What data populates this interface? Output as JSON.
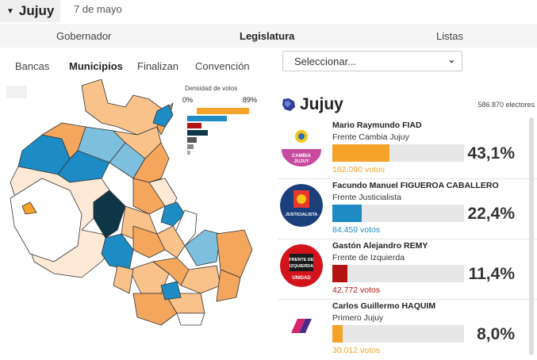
{
  "header": {
    "province": "Jujuy",
    "date": "7 de mayo"
  },
  "levels": [
    "Gobernador",
    "Legislatura",
    "Listas"
  ],
  "active_level": "Legislatura",
  "subtabs": [
    "Bancas",
    "Municipios",
    "Finalizan",
    "Convención"
  ],
  "active_subtab": "Municipios",
  "select": {
    "value": "Seleccionar..."
  },
  "legend": {
    "title": "Densidad de votos",
    "min": "0%",
    "max": "89%"
  },
  "panel": {
    "title": "Jujuy",
    "electors": "586.870 electores"
  },
  "candidates": [
    {
      "name": "Mario Raymundo FIAD",
      "party": "Frente Cambia Jujuy",
      "pct": "43,1%",
      "pct_value": 43.1,
      "votes": "162.090 votos",
      "color": "#f5a228",
      "logo": "cambia-jujuy-logo"
    },
    {
      "name": "Facundo Manuel FIGUEROA CABALLERO",
      "party": "Frente Justicialista",
      "pct": "22,4%",
      "pct_value": 22.4,
      "votes": "84.459 votos",
      "color": "#1d8cc4",
      "logo": "justicialista-logo"
    },
    {
      "name": "Gastón Alejandro REMY",
      "party": "Frente de Izquierda",
      "pct": "11,4%",
      "pct_value": 11.4,
      "votes": "42.772 votos",
      "color": "#b31313",
      "logo": "izquierda-logo"
    },
    {
      "name": "Carlos Guillermo HAQUIM",
      "party": "Primero Jujuy",
      "pct": "8,0%",
      "pct_value": 8.0,
      "votes": "30.012 votos",
      "color": "#f5a228",
      "logo": "primero-jujuy-logo"
    }
  ]
}
